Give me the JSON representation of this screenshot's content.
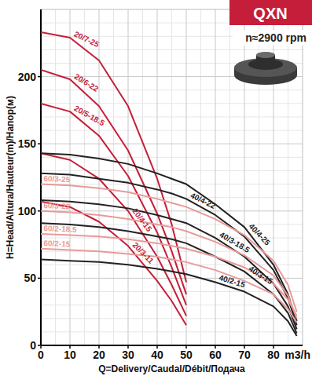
{
  "chart_data": {
    "type": "line",
    "title": "QXN",
    "subtitle": "n≈2900 rpm",
    "x_label": "Q=Delivery/Caudal/Débit/Подача",
    "y_label": "H=Head/Altura/Hauteur(m)/Напор(м)",
    "annotations": [
      "m3/h"
    ],
    "x": [
      0,
      10,
      20,
      30,
      40,
      45,
      50,
      60,
      70,
      80,
      85,
      88
    ],
    "series": [
      {
        "name": "20/7-25",
        "color": "#c41e3a",
        "values": [
          233,
          229,
          212,
          178,
          124,
          90,
          47,
          null,
          null,
          null,
          null,
          null
        ]
      },
      {
        "name": "20/6-22",
        "color": "#c41e3a",
        "values": [
          205,
          198,
          178,
          145,
          98,
          70,
          38,
          null,
          null,
          null,
          null,
          null
        ]
      },
      {
        "name": "20/5-18.5",
        "color": "#c41e3a",
        "values": [
          180,
          174,
          156,
          126,
          84,
          58,
          30,
          null,
          null,
          null,
          null,
          null
        ]
      },
      {
        "name": "20/4-15",
        "color": "#c41e3a",
        "values": [
          143,
          138,
          124,
          100,
          66,
          45,
          22,
          null,
          null,
          null,
          null,
          null
        ]
      },
      {
        "name": "20/3-11",
        "color": "#c41e3a",
        "values": [
          107,
          103,
          92,
          74,
          48,
          33,
          15,
          null,
          null,
          null,
          null,
          null
        ]
      },
      {
        "name": "40/4-25",
        "color": "#222222",
        "values": [
          143,
          142,
          139,
          135,
          128,
          124,
          120,
          105,
          88,
          60,
          38,
          18
        ]
      },
      {
        "name": "40/4-22",
        "color": "#222222",
        "values": [
          128,
          127,
          124,
          121,
          116,
          113,
          109,
          97,
          81,
          56,
          35,
          15
        ]
      },
      {
        "name": "40/3-18.5",
        "color": "#222222",
        "values": [
          108,
          107,
          105,
          102,
          97,
          94,
          91,
          80,
          66,
          46,
          29,
          12
        ]
      },
      {
        "name": "40/3-15",
        "color": "#222222",
        "values": [
          91,
          90,
          88,
          85,
          81,
          79,
          76,
          66,
          55,
          38,
          24,
          9
        ]
      },
      {
        "name": "40/2-15",
        "color": "#222222",
        "values": [
          64,
          63,
          62,
          60,
          57,
          55,
          53,
          47,
          40,
          29,
          18,
          7
        ]
      },
      {
        "name": "60/3-25",
        "color": "#e89a9a",
        "values": [
          120,
          119,
          117,
          114,
          109,
          106,
          103,
          94,
          82,
          63,
          45,
          25
        ]
      },
      {
        "name": "60/3-22",
        "color": "#e89a9a",
        "values": [
          100,
          99,
          97,
          94,
          90,
          88,
          85,
          77,
          67,
          52,
          37,
          20
        ]
      },
      {
        "name": "60/2-18.5",
        "color": "#e89a9a",
        "values": [
          83,
          82,
          81,
          79,
          76,
          74,
          72,
          66,
          58,
          46,
          34,
          22
        ]
      },
      {
        "name": "60/2-15",
        "color": "#e89a9a",
        "values": [
          72,
          71,
          70,
          68,
          66,
          64,
          62,
          56,
          48,
          38,
          27,
          17
        ]
      }
    ],
    "xlim": [
      0,
      90
    ],
    "ylim": [
      0,
      250
    ],
    "xticks": [
      0,
      10,
      20,
      30,
      40,
      50,
      60,
      70,
      80
    ],
    "yticks": [
      0,
      50,
      100,
      150,
      200
    ],
    "grid": true
  }
}
